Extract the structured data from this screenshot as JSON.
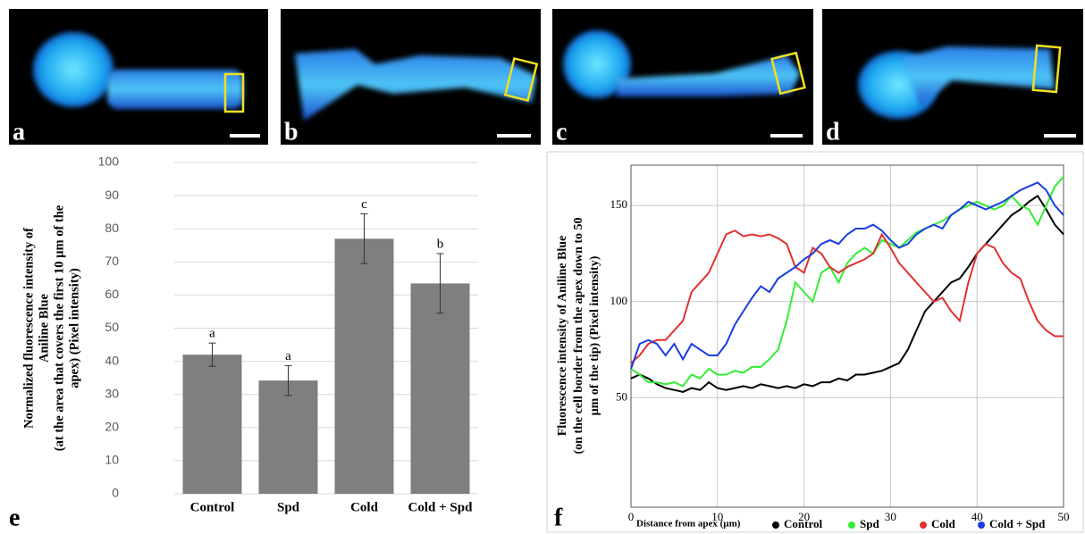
{
  "panel_labels": [
    "a",
    "b",
    "c",
    "d"
  ],
  "chart_data": [
    {
      "type": "bar",
      "panel_label": "e",
      "ylabel": [
        "Normalized fluorescence intensity of",
        "Aniline Blue",
        "(at the area that covers the first 10 µm of the",
        "apex) (Pixel intensity)"
      ],
      "categories": [
        "Control",
        "Spd",
        "Cold",
        "Cold + Spd"
      ],
      "values": [
        42,
        34.2,
        77,
        63.5
      ],
      "errors": [
        3.5,
        4.5,
        7.5,
        9
      ],
      "annotations": [
        "a",
        "a",
        "c",
        "b"
      ],
      "color": "#7f7f7f",
      "ylim": [
        0,
        100
      ],
      "yticks": [
        0,
        10,
        20,
        30,
        40,
        50,
        60,
        70,
        80,
        90,
        100
      ],
      "grid": true
    },
    {
      "type": "line",
      "panel_label": "f",
      "ylabel": [
        "Fluorescence intensity of Aniline Blue",
        "(on the cell border from the apex down to 50",
        "µm of the tip) (Pixel intensity)"
      ],
      "xlabel": "Distance from apex (µm)",
      "x": [
        0,
        1,
        2,
        3,
        4,
        5,
        6,
        7,
        8,
        9,
        10,
        11,
        12,
        13,
        14,
        15,
        16,
        17,
        18,
        19,
        20,
        21,
        22,
        23,
        24,
        25,
        26,
        27,
        28,
        29,
        30,
        31,
        32,
        33,
        34,
        35,
        36,
        37,
        38,
        39,
        40,
        41,
        42,
        43,
        44,
        45,
        46,
        47,
        48,
        49,
        50
      ],
      "series": [
        {
          "name": "Control",
          "color": "#000000",
          "values": [
            60,
            62,
            60,
            57,
            55,
            54,
            53,
            55,
            54,
            58,
            55,
            54,
            55,
            56,
            55,
            57,
            56,
            55,
            56,
            55,
            57,
            56,
            58,
            58,
            60,
            59,
            62,
            62,
            63,
            64,
            66,
            68,
            75,
            85,
            95,
            100,
            105,
            110,
            112,
            118,
            125,
            130,
            135,
            140,
            145,
            148,
            152,
            155,
            148,
            140,
            135
          ]
        },
        {
          "name": "Spd",
          "color": "#33ee33",
          "values": [
            65,
            62,
            58,
            58,
            57,
            58,
            56,
            62,
            60,
            65,
            62,
            62,
            64,
            63,
            66,
            66,
            70,
            75,
            90,
            110,
            105,
            100,
            115,
            118,
            110,
            120,
            125,
            128,
            125,
            132,
            130,
            128,
            132,
            136,
            138,
            140,
            142,
            145,
            148,
            150,
            152,
            150,
            148,
            150,
            155,
            150,
            148,
            140,
            150,
            160,
            165
          ]
        },
        {
          "name": "Cold",
          "color": "#e03030",
          "values": [
            68,
            72,
            78,
            80,
            80,
            85,
            90,
            105,
            110,
            115,
            125,
            135,
            137,
            134,
            135,
            134,
            135,
            133,
            130,
            118,
            115,
            128,
            125,
            118,
            115,
            118,
            120,
            122,
            125,
            135,
            128,
            120,
            115,
            110,
            105,
            100,
            102,
            95,
            90,
            110,
            125,
            130,
            128,
            120,
            115,
            112,
            100,
            90,
            85,
            82,
            82
          ]
        },
        {
          "name": "Cold + Spd",
          "color": "#1a3de0",
          "values": [
            65,
            78,
            80,
            78,
            72,
            78,
            70,
            78,
            75,
            72,
            72,
            78,
            88,
            95,
            102,
            108,
            105,
            112,
            115,
            118,
            122,
            125,
            130,
            132,
            130,
            135,
            138,
            138,
            140,
            137,
            132,
            128,
            130,
            135,
            138,
            140,
            138,
            145,
            148,
            152,
            150,
            148,
            150,
            152,
            155,
            158,
            160,
            162,
            158,
            150,
            145
          ]
        }
      ],
      "xlim": [
        0,
        50
      ],
      "xticks": [
        0,
        10,
        20,
        30,
        40,
        50
      ],
      "ylim": [
        -7,
        171
      ],
      "yticks": [
        50,
        100,
        150
      ],
      "grid": true
    }
  ]
}
